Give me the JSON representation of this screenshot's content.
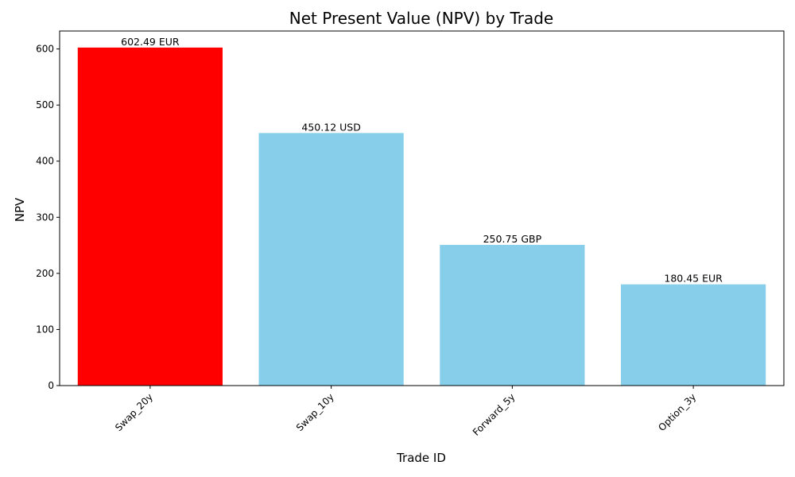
{
  "chart_data": {
    "type": "bar",
    "title": "Net Present Value (NPV) by Trade",
    "xlabel": "Trade ID",
    "ylabel": "NPV",
    "categories": [
      "Swap_20y",
      "Swap_10y",
      "Forward_5y",
      "Option_3y"
    ],
    "values": [
      602.49,
      450.12,
      250.75,
      180.45
    ],
    "bar_labels": [
      "602.49 EUR",
      "450.12 USD",
      "250.75 GBP",
      "180.45 EUR"
    ],
    "bar_colors": [
      "#ff0000",
      "#87ceeb",
      "#87ceeb",
      "#87ceeb"
    ],
    "ylim": [
      0,
      632
    ],
    "yticks": [
      0,
      100,
      200,
      300,
      400,
      500,
      600
    ],
    "grid": false,
    "legend": "none"
  }
}
